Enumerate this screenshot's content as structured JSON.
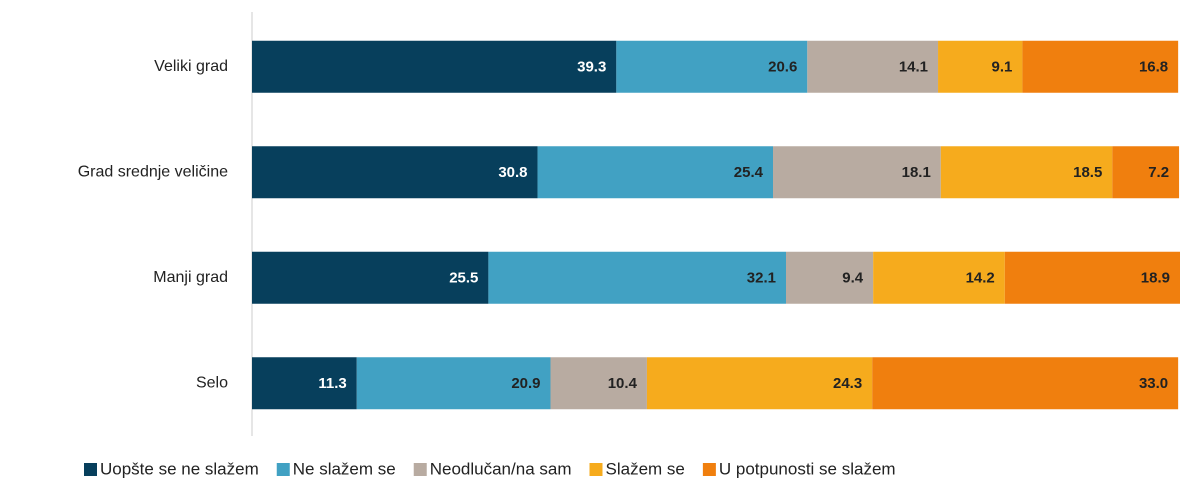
{
  "chart_data": {
    "type": "stacked-bar-horizontal",
    "categories": [
      "Veliki grad",
      "Grad srednje veličine",
      "Manji grad",
      "Selo"
    ],
    "series": [
      {
        "name": "Uopšte se ne slažem",
        "color": "#073f5c",
        "values": [
          39.3,
          30.8,
          25.5,
          11.3
        ]
      },
      {
        "name": "Ne slažem se",
        "color": "#41a1c3",
        "values": [
          20.6,
          25.4,
          32.1,
          20.9
        ]
      },
      {
        "name": "Neodlučan/na sam",
        "color": "#b8aba1",
        "values": [
          14.1,
          18.1,
          9.4,
          10.4
        ]
      },
      {
        "name": "Slažem se",
        "color": "#f6ab1d",
        "values": [
          9.1,
          18.5,
          14.2,
          24.3
        ]
      },
      {
        "name": "U potpunosti se slažem",
        "color": "#f07f0e",
        "values": [
          16.8,
          7.2,
          18.9,
          33.0
        ],
        "value_labels": [
          "16.8",
          "7.2",
          "18.9",
          "33.0"
        ]
      }
    ],
    "legend": "bottom"
  }
}
